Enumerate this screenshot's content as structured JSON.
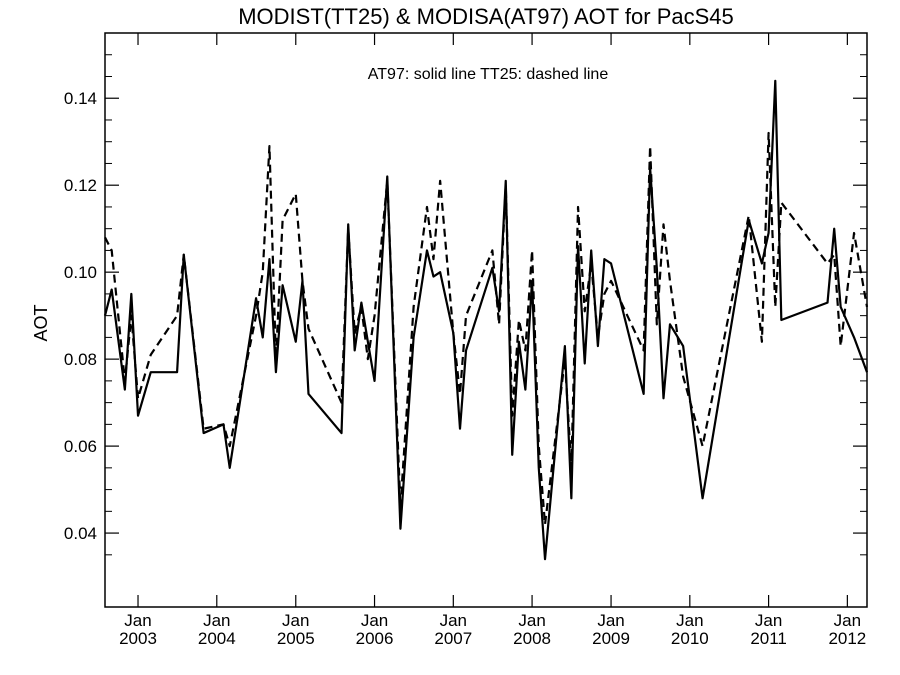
{
  "chart_data": {
    "type": "line",
    "title": "MODIST(TT25) & MODISA(AT97)  AOT for PacS45",
    "annotation": "AT97: solid line   TT25: dashed line",
    "xlabel": "",
    "ylabel": "AOT",
    "xlim": [
      "2002-08-01",
      "2012-04-01"
    ],
    "ylim": [
      0.023,
      0.155
    ],
    "grid": false,
    "y_ticks": [
      0.04,
      0.06,
      0.08,
      0.1,
      0.12,
      0.14
    ],
    "y_tick_labels": [
      "0.04",
      "0.06",
      "0.08",
      "0.10",
      "0.12",
      "0.14"
    ],
    "x_ticks": [
      {
        "date": "2003-01-01",
        "line1": "Jan",
        "line2": "2003"
      },
      {
        "date": "2004-01-01",
        "line1": "Jan",
        "line2": "2004"
      },
      {
        "date": "2005-01-01",
        "line1": "Jan",
        "line2": "2005"
      },
      {
        "date": "2006-01-01",
        "line1": "Jan",
        "line2": "2006"
      },
      {
        "date": "2007-01-01",
        "line1": "Jan",
        "line2": "2007"
      },
      {
        "date": "2008-01-01",
        "line1": "Jan",
        "line2": "2008"
      },
      {
        "date": "2009-01-01",
        "line1": "Jan",
        "line2": "2009"
      },
      {
        "date": "2010-01-01",
        "line1": "Jan",
        "line2": "2010"
      },
      {
        "date": "2011-01-01",
        "line1": "Jan",
        "line2": "2011"
      },
      {
        "date": "2012-01-01",
        "line1": "Jan",
        "line2": "2012"
      }
    ],
    "series": [
      {
        "style": "solid",
        "points": [
          [
            "2002-08-01",
            0.09
          ],
          [
            "2002-09-01",
            0.096
          ],
          [
            "2002-11-01",
            0.073
          ],
          [
            "2002-12-01",
            0.095
          ],
          [
            "2003-01-01",
            0.067
          ],
          [
            "2003-03-01",
            0.077
          ],
          [
            "2003-07-01",
            0.077
          ],
          [
            "2003-08-01",
            0.104
          ],
          [
            "2003-11-01",
            0.063
          ],
          [
            "2004-02-01",
            0.065
          ],
          [
            "2004-03-01",
            0.055
          ],
          [
            "2004-07-01",
            0.094
          ],
          [
            "2004-08-01",
            0.085
          ],
          [
            "2004-09-01",
            0.103
          ],
          [
            "2004-10-01",
            0.077
          ],
          [
            "2004-11-01",
            0.097
          ],
          [
            "2005-01-01",
            0.084
          ],
          [
            "2005-02-01",
            0.098
          ],
          [
            "2005-03-01",
            0.072
          ],
          [
            "2005-08-01",
            0.063
          ],
          [
            "2005-09-01",
            0.111
          ],
          [
            "2005-10-01",
            0.082
          ],
          [
            "2005-11-01",
            0.093
          ],
          [
            "2005-12-01",
            0.084
          ],
          [
            "2006-01-01",
            0.075
          ],
          [
            "2006-03-01",
            0.122
          ],
          [
            "2006-05-01",
            0.041
          ],
          [
            "2006-07-01",
            0.085
          ],
          [
            "2006-09-01",
            0.105
          ],
          [
            "2006-10-01",
            0.099
          ],
          [
            "2006-11-01",
            0.1
          ],
          [
            "2007-01-01",
            0.086
          ],
          [
            "2007-02-01",
            0.064
          ],
          [
            "2007-03-01",
            0.082
          ],
          [
            "2007-07-01",
            0.101
          ],
          [
            "2007-08-01",
            0.091
          ],
          [
            "2007-09-01",
            0.121
          ],
          [
            "2007-10-01",
            0.058
          ],
          [
            "2007-11-01",
            0.084
          ],
          [
            "2007-12-01",
            0.073
          ],
          [
            "2008-01-01",
            0.098
          ],
          [
            "2008-02-01",
            0.055
          ],
          [
            "2008-03-01",
            0.034
          ],
          [
            "2008-06-01",
            0.083
          ],
          [
            "2008-07-01",
            0.048
          ],
          [
            "2008-08-01",
            0.106
          ],
          [
            "2008-09-01",
            0.079
          ],
          [
            "2008-10-01",
            0.105
          ],
          [
            "2008-11-01",
            0.083
          ],
          [
            "2008-12-01",
            0.103
          ],
          [
            "2009-01-01",
            0.102
          ],
          [
            "2009-06-01",
            0.072
          ],
          [
            "2009-07-01",
            0.124
          ],
          [
            "2009-08-01",
            0.101
          ],
          [
            "2009-09-01",
            0.071
          ],
          [
            "2009-10-01",
            0.088
          ],
          [
            "2009-12-01",
            0.083
          ],
          [
            "2010-03-01",
            0.048
          ],
          [
            "2010-10-01",
            0.112
          ],
          [
            "2010-12-01",
            0.102
          ],
          [
            "2011-01-01",
            0.109
          ],
          [
            "2011-02-01",
            0.144
          ],
          [
            "2011-03-01",
            0.089
          ],
          [
            "2011-10-01",
            0.093
          ],
          [
            "2011-11-01",
            0.11
          ],
          [
            "2011-12-01",
            0.092
          ],
          [
            "2012-02-01",
            0.085
          ],
          [
            "2012-04-01",
            0.077
          ]
        ]
      },
      {
        "style": "dashed",
        "points": [
          [
            "2002-08-01",
            0.108
          ],
          [
            "2002-09-01",
            0.105
          ],
          [
            "2002-11-01",
            0.075
          ],
          [
            "2002-12-01",
            0.09
          ],
          [
            "2003-01-01",
            0.071
          ],
          [
            "2003-03-01",
            0.081
          ],
          [
            "2003-07-01",
            0.09
          ],
          [
            "2003-08-01",
            0.104
          ],
          [
            "2003-11-01",
            0.064
          ],
          [
            "2004-02-01",
            0.065
          ],
          [
            "2004-03-01",
            0.06
          ],
          [
            "2004-07-01",
            0.09
          ],
          [
            "2004-08-01",
            0.1
          ],
          [
            "2004-09-01",
            0.129
          ],
          [
            "2004-10-01",
            0.08
          ],
          [
            "2004-11-01",
            0.112
          ],
          [
            "2005-01-01",
            0.118
          ],
          [
            "2005-02-01",
            0.098
          ],
          [
            "2005-03-01",
            0.087
          ],
          [
            "2005-08-01",
            0.07
          ],
          [
            "2005-09-01",
            0.11
          ],
          [
            "2005-10-01",
            0.086
          ],
          [
            "2005-11-01",
            0.092
          ],
          [
            "2005-12-01",
            0.08
          ],
          [
            "2006-01-01",
            0.09
          ],
          [
            "2006-03-01",
            0.121
          ],
          [
            "2006-05-01",
            0.046
          ],
          [
            "2006-07-01",
            0.092
          ],
          [
            "2006-09-01",
            0.115
          ],
          [
            "2006-10-01",
            0.103
          ],
          [
            "2006-11-01",
            0.121
          ],
          [
            "2007-01-01",
            0.086
          ],
          [
            "2007-02-01",
            0.072
          ],
          [
            "2007-03-01",
            0.09
          ],
          [
            "2007-07-01",
            0.105
          ],
          [
            "2007-08-01",
            0.088
          ],
          [
            "2007-09-01",
            0.12
          ],
          [
            "2007-10-01",
            0.067
          ],
          [
            "2007-11-01",
            0.089
          ],
          [
            "2007-12-01",
            0.082
          ],
          [
            "2008-01-01",
            0.105
          ],
          [
            "2008-02-01",
            0.06
          ],
          [
            "2008-03-01",
            0.042
          ],
          [
            "2008-06-01",
            0.08
          ],
          [
            "2008-07-01",
            0.055
          ],
          [
            "2008-08-01",
            0.115
          ],
          [
            "2008-09-01",
            0.091
          ],
          [
            "2008-10-01",
            0.102
          ],
          [
            "2008-11-01",
            0.085
          ],
          [
            "2008-12-01",
            0.095
          ],
          [
            "2009-01-01",
            0.098
          ],
          [
            "2009-06-01",
            0.082
          ],
          [
            "2009-07-01",
            0.129
          ],
          [
            "2009-08-01",
            0.088
          ],
          [
            "2009-09-01",
            0.111
          ],
          [
            "2009-10-01",
            0.098
          ],
          [
            "2009-12-01",
            0.076
          ],
          [
            "2010-03-01",
            0.06
          ],
          [
            "2010-10-01",
            0.113
          ],
          [
            "2010-12-01",
            0.084
          ],
          [
            "2011-01-01",
            0.132
          ],
          [
            "2011-02-01",
            0.092
          ],
          [
            "2011-03-01",
            0.116
          ],
          [
            "2011-10-01",
            0.102
          ],
          [
            "2011-11-01",
            0.104
          ],
          [
            "2011-12-01",
            0.083
          ],
          [
            "2012-02-01",
            0.109
          ],
          [
            "2012-04-01",
            0.092
          ]
        ]
      }
    ]
  }
}
